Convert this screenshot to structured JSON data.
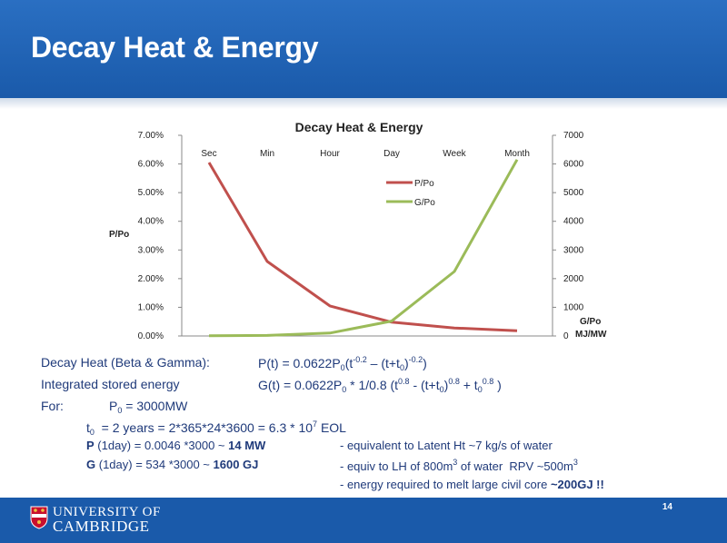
{
  "slide": {
    "title": "Decay Heat & Energy",
    "page_number": "14",
    "university": {
      "line1": "UNIVERSITY OF",
      "line2": "CAMBRIDGE"
    }
  },
  "chart_data": {
    "type": "line",
    "title": "Decay Heat & Energy",
    "categories": [
      "Sec",
      "Min",
      "Hour",
      "Day",
      "Week",
      "Month"
    ],
    "left_axis": {
      "label": "P/Po",
      "ticks": [
        "0.00%",
        "1.00%",
        "2.00%",
        "3.00%",
        "4.00%",
        "5.00%",
        "6.00%",
        "7.00%"
      ],
      "min": 0,
      "max": 0.07
    },
    "right_axis": {
      "label_line1": "G/Po",
      "label_line2": "MJ/MW",
      "ticks": [
        "0",
        "1000",
        "2000",
        "3000",
        "4000",
        "5000",
        "6000",
        "7000"
      ],
      "min": 0,
      "max": 7000
    },
    "series": [
      {
        "name": "P/Po",
        "axis": "left",
        "color": "#c0504d",
        "values": [
          0.0605,
          0.026,
          0.0105,
          0.0048,
          0.0028,
          0.0018
        ]
      },
      {
        "name": "G/Po",
        "axis": "right",
        "color": "#9bbb59",
        "values": [
          5,
          20,
          100,
          520,
          2250,
          6150
        ]
      }
    ],
    "legend_position": "upper-middle",
    "grid": false
  },
  "text": {
    "decay_label": "Decay Heat (Beta & Gamma):",
    "decay_formula": "P(t) = 0.0622P0(t-0.2 – (t+t0)-0.2)",
    "stored_label": "Integrated stored energy",
    "stored_formula": "G(t) = 0.0622P0 * 1/0.8 (t0.8 - (t+t0)0.8 + t00.8 )",
    "for_label": "For:",
    "p0_line": "P0 = 3000MW",
    "t0_line": "t0 = 2 years = 2*365*24*3600 = 6.3 * 107 EOL",
    "p_line_prefix": "P",
    "p_line_mid": " (1day)  = 0.0046 *3000  ~ ",
    "p_line_value": "14 MW",
    "p_line_note": "- equivalent to Latent Ht ~7 kg/s of water",
    "g_line_prefix": "G",
    "g_line_mid": " (1day)  = 534 *3000     ~ ",
    "g_line_value": "1600 GJ",
    "g_line_note": "- equiv to LH of 800m3 of water  RPV ~500m3",
    "energy_note_prefix": "- energy required to melt large civil core ",
    "energy_note_value": "~200GJ !!"
  }
}
